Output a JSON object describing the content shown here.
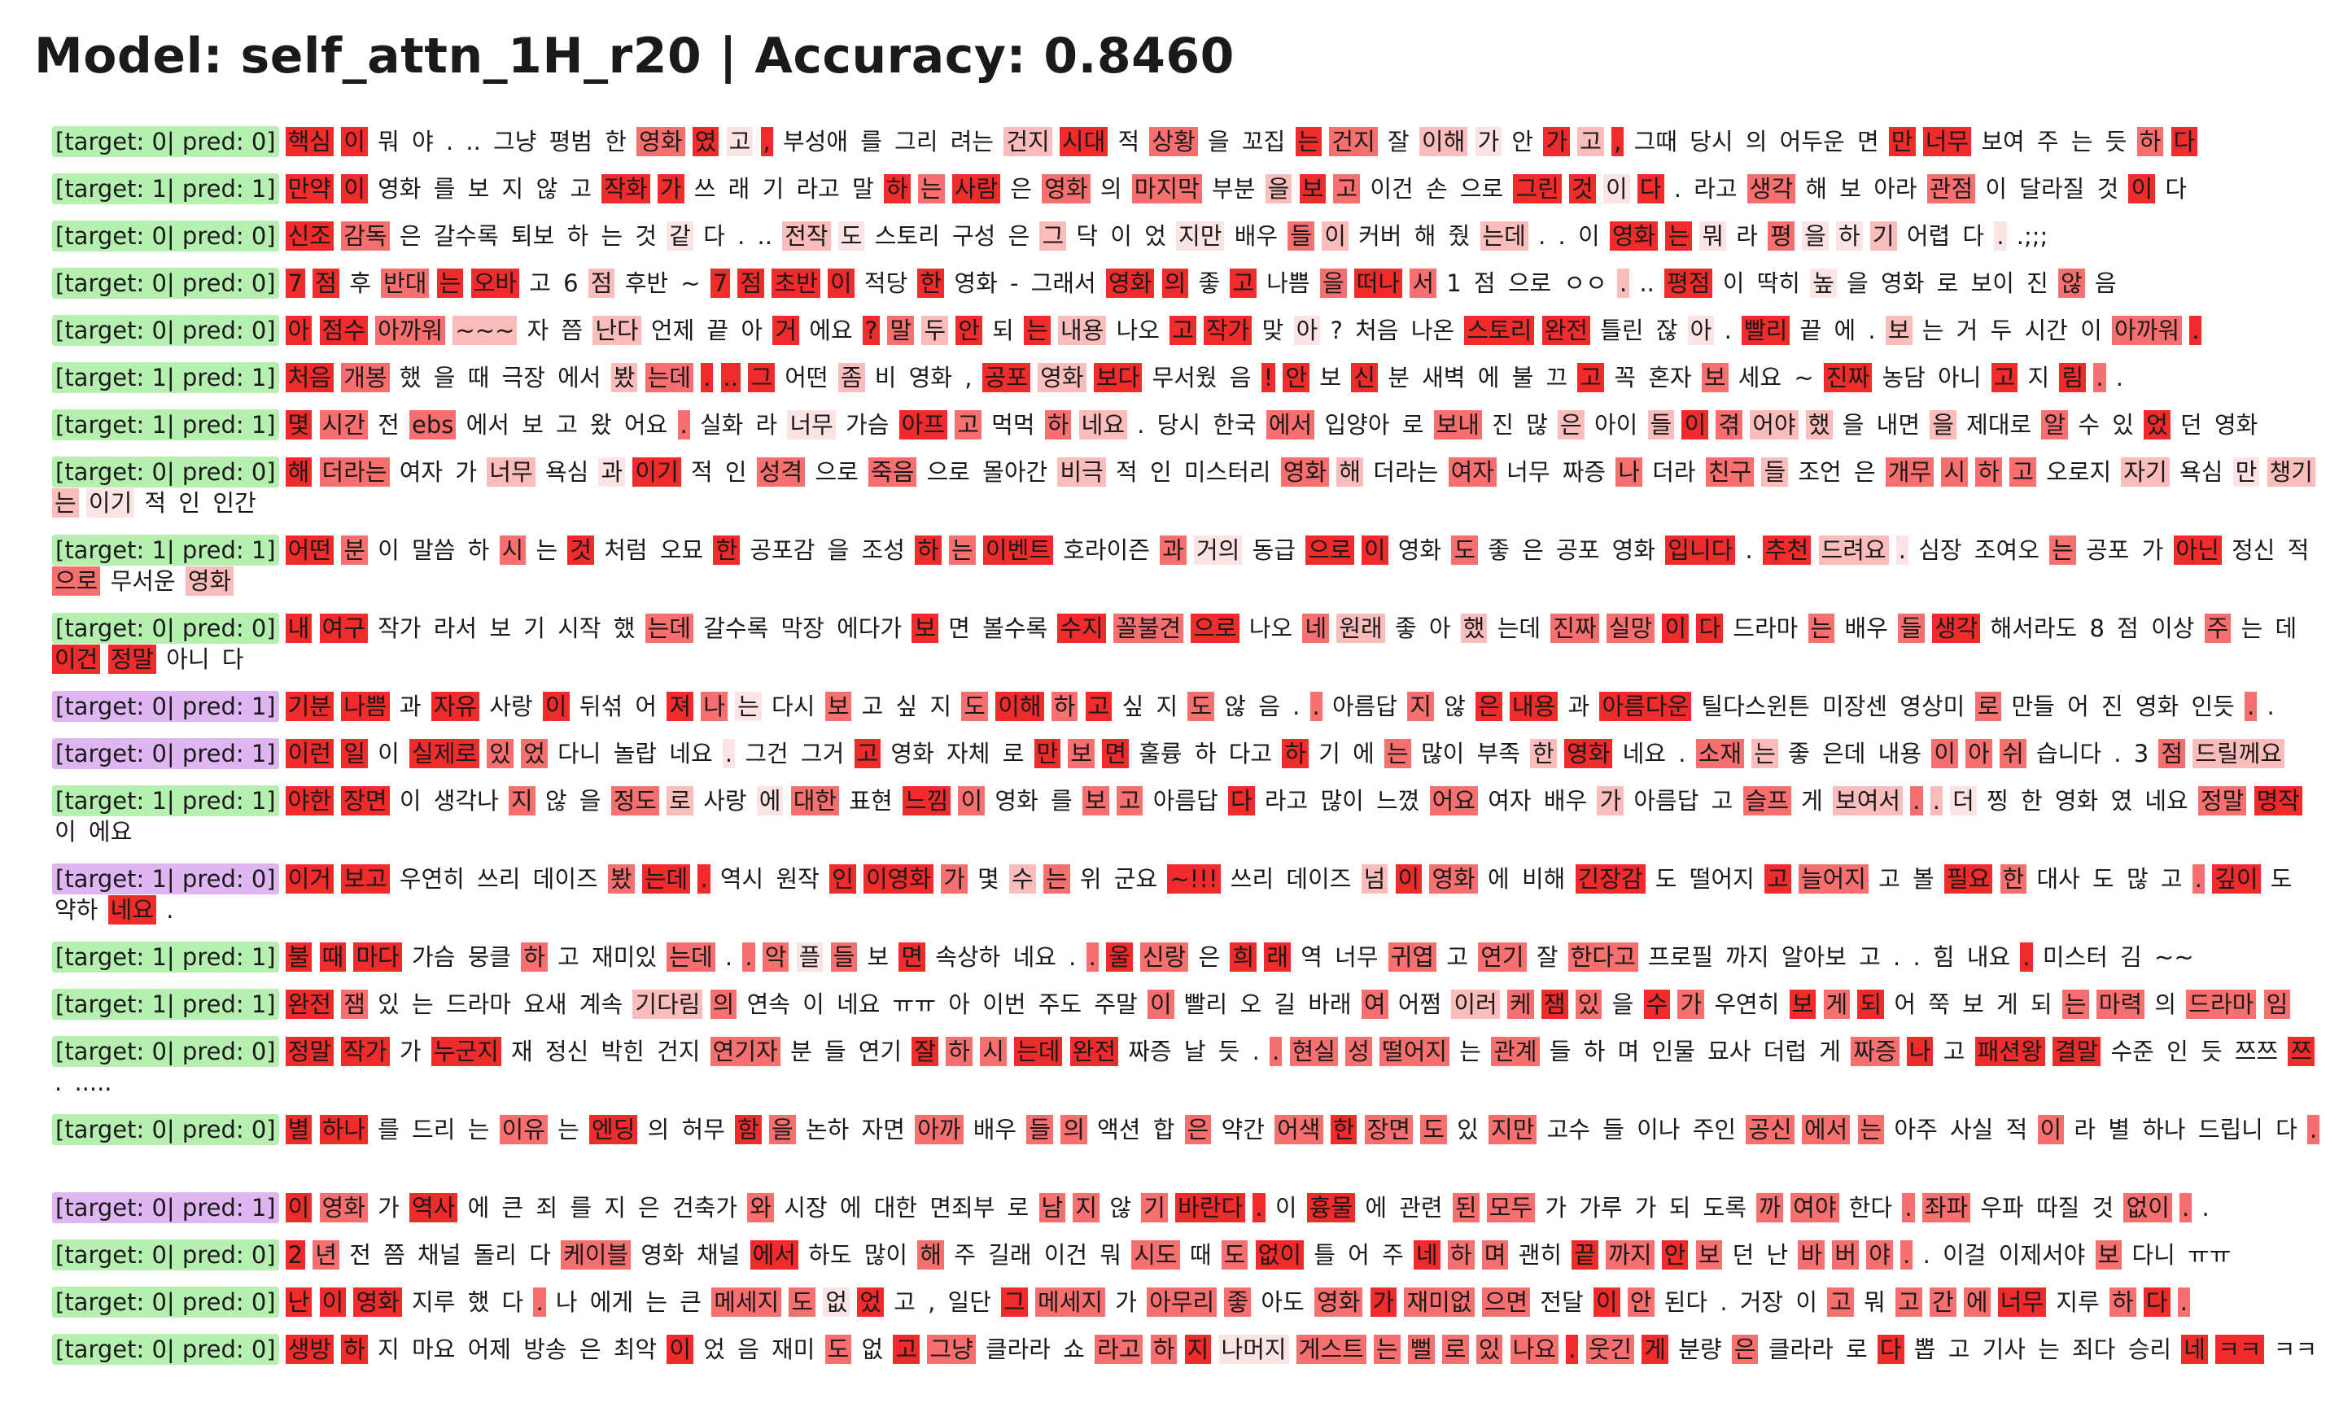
{
  "title": "Model: self_attn_1H_r20 | Accuracy: 0.8460",
  "colors": {
    "correct_label": "#b6f0b0",
    "wrong_label": "#dfb6f2",
    "attention_max": "#ef2b2b",
    "attention_high": "#f76f6f",
    "attention_mid": "#fbbcbc",
    "attention_low": "#fde4e4"
  },
  "rows": [
    {
      "label": "[target: 0| pred: 0]",
      "correct": true,
      "text": "핵심 이 뭐 야 . .. 그냥 평범 한 영화 였 고 , 부성애 를 그리 려는 건지 시대 적 상황 을 꼬집 는 건지 잘 이해 가 안 가 고 , 그때 당시 의 어두운 면 만 너무 보여 주 는 듯 하 다",
      "w": [
        4,
        4,
        0,
        0,
        0,
        0,
        0,
        0,
        0,
        3,
        4,
        1,
        4,
        0,
        0,
        0,
        0,
        2,
        4,
        0,
        3,
        0,
        0,
        4,
        3,
        0,
        2,
        1,
        0,
        4,
        2,
        4,
        0,
        0,
        0,
        0,
        0,
        4,
        4,
        0,
        0,
        0,
        0,
        3,
        4,
        4
      ]
    },
    {
      "label": "[target: 1| pred: 1]",
      "correct": true,
      "text": "만약 이 영화 를 보 지 않 고 작화 가 쓰 래 기 라고 말 하 는 사람 은 영화 의 마지막 부분 을 보 고 이건 손 으로 그린 것 이 다 . 라고 생각 해 보 아라 관점 이 달라질 것 이 다",
      "w": [
        4,
        4,
        0,
        0,
        0,
        0,
        0,
        0,
        4,
        4,
        0,
        0,
        0,
        0,
        0,
        4,
        3,
        4,
        0,
        3,
        0,
        3,
        0,
        2,
        4,
        3,
        0,
        0,
        0,
        4,
        4,
        1,
        4,
        0,
        0,
        3,
        0,
        0,
        0,
        3,
        0,
        0,
        0,
        4,
        0
      ]
    },
    {
      "label": "[target: 0| pred: 0]",
      "correct": true,
      "text": "신조 감독 은 갈수록 퇴보 하 는 것 같 다 . .. 전작 도 스토리 구성 은 그 닥 이 었 지만 배우 들 이 커버 해 줬 는데 . . 이 영화 는 뭐 라 평 을 하 기 어렵 다 . .;;;",
      "w": [
        4,
        3,
        0,
        0,
        0,
        0,
        0,
        0,
        1,
        0,
        0,
        0,
        2,
        1,
        0,
        0,
        0,
        2,
        0,
        0,
        0,
        1,
        0,
        3,
        2,
        0,
        0,
        0,
        2,
        0,
        0,
        0,
        4,
        4,
        1,
        0,
        3,
        1,
        1,
        2,
        0,
        0,
        1,
        0
      ]
    },
    {
      "label": "[target: 0| pred: 0]",
      "correct": true,
      "text": "7 점 후 반대 는 오바 고 6 점 후반 ~ 7 점 초반 이 적당 한 영화 - 그래서 영화 의 좋 고 나쁨 을 떠나 서 1 점 으로 ㅇㅇ . .. 평점 이 딱히 높 을 영화 로 보이 진 않 음",
      "w": [
        4,
        4,
        0,
        3,
        4,
        4,
        0,
        0,
        2,
        0,
        0,
        4,
        4,
        4,
        4,
        0,
        4,
        0,
        0,
        0,
        4,
        4,
        0,
        4,
        0,
        3,
        4,
        3,
        0,
        0,
        0,
        0,
        2,
        0,
        4,
        0,
        0,
        1,
        0,
        0,
        0,
        0,
        0,
        3,
        0
      ]
    },
    {
      "label": "[target: 0| pred: 0]",
      "correct": true,
      "text": "아 점수 아까워 ~~~ 자 쯤 난다 언제 끝 아 거 에요 ? 말 두 안 되 는 내용 나오 고 작가 맞 아 ? 처음 나온 스토리 완전 틀린 잖 아 . 빨리 끝 에 . 보 는 거 두 시간 이 아까워 .",
      "w": [
        4,
        4,
        3,
        2,
        0,
        0,
        2,
        0,
        0,
        0,
        4,
        0,
        4,
        3,
        2,
        4,
        0,
        4,
        2,
        0,
        4,
        4,
        0,
        1,
        0,
        0,
        0,
        4,
        4,
        0,
        0,
        1,
        0,
        4,
        0,
        0,
        0,
        2,
        0,
        0,
        0,
        0,
        0,
        3,
        4
      ]
    },
    {
      "label": "[target: 1| pred: 1]",
      "correct": true,
      "text": "처음 개봉 했 을 때 극장 에서 봤 는데 . .. 그 어떤 좀 비 영화 , 공포 영화 보다 무서웠 음 ! 안 보 신 분 새벽 에 불 끄 고 꼭 혼자 보 세요 ~ 진짜 농담 아니 고 지 림 . .",
      "w": [
        4,
        3,
        0,
        0,
        0,
        0,
        0,
        2,
        3,
        4,
        4,
        4,
        0,
        2,
        0,
        0,
        0,
        4,
        2,
        4,
        0,
        0,
        4,
        4,
        0,
        4,
        0,
        0,
        0,
        0,
        0,
        4,
        0,
        0,
        3,
        0,
        0,
        4,
        0,
        0,
        4,
        0,
        4,
        3
      ]
    },
    {
      "label": "[target: 1| pred: 1]",
      "correct": true,
      "text": "몇 시간 전 ebs 에서 보 고 왔 어요 . 실화 라 너무 가슴 아프 고 먹먹 하 네요 . 당시 한국 에서 입양아 로 보내 진 많 은 아이 들 이 겪 어야 했 을 내면 을 제대로 알 수 있 었 던 영화",
      "w": [
        4,
        3,
        0,
        3,
        0,
        0,
        0,
        0,
        0,
        3,
        0,
        0,
        1,
        0,
        4,
        3,
        0,
        3,
        2,
        0,
        0,
        0,
        3,
        0,
        0,
        3,
        0,
        0,
        2,
        0,
        2,
        4,
        3,
        2,
        2,
        0,
        0,
        2,
        0,
        3,
        0,
        0,
        4,
        0,
        0
      ]
    },
    {
      "label": "[target: 0| pred: 0]",
      "correct": true,
      "text": "해 더라는 여자 가 너무 욕심 과 이기 적 인 성격 으로 죽음 으로 몰아간 비극 적 인 미스터리 영화 해 더라는 여자 너무 짜증 나 더라 친구 들 조언 은 개무 시 하 고 오로지 자기 욕심 만 챙기 는 이기 적 인 인간",
      "w": [
        4,
        3,
        0,
        0,
        2,
        0,
        1,
        4,
        0,
        0,
        3,
        0,
        3,
        0,
        0,
        2,
        0,
        0,
        0,
        3,
        2,
        0,
        3,
        0,
        0,
        3,
        0,
        3,
        2,
        0,
        0,
        3,
        3,
        3,
        3,
        0,
        2,
        0,
        1,
        2,
        2,
        1,
        0,
        0
      ]
    },
    {
      "label": "[target: 1| pred: 1]",
      "correct": true,
      "text": "어떤 분 이 말씀 하 시 는 것 처럼 오묘 한 공포감 을 조성 하 는 이벤트 호라이즌 과 거의 동급 으로 이 영화 도 좋 은 공포 영화 입니다 . 추천 드려요 . 심장 조여오 는 공포 가 아닌 정신 적 으로 무서운 영화",
      "w": [
        4,
        3,
        0,
        0,
        0,
        3,
        0,
        4,
        0,
        0,
        4,
        0,
        0,
        0,
        4,
        3,
        4,
        0,
        3,
        1,
        0,
        4,
        4,
        0,
        3,
        0,
        0,
        0,
        0,
        4,
        0,
        4,
        2,
        1,
        0,
        0,
        3,
        0,
        0,
        4,
        0,
        0,
        3,
        0,
        2,
        0
      ]
    },
    {
      "label": "[target: 0| pred: 0]",
      "correct": true,
      "text": "내 여구 작가 라서 보 기 시작 했 는데 갈수록 막장 에다가 보 면 볼수록 수지 꼴불견 으로 나오 네 원래 좋 아 했 는데 진짜 실망 이 다 드라마 는 배우 들 생각 해서라도 8 점 이상 주 는 데 이건 정말 아니 다",
      "w": [
        4,
        4,
        0,
        0,
        0,
        0,
        0,
        0,
        3,
        0,
        0,
        0,
        4,
        0,
        0,
        4,
        3,
        4,
        0,
        3,
        2,
        0,
        0,
        2,
        0,
        3,
        3,
        4,
        4,
        0,
        3,
        0,
        3,
        4,
        0,
        0,
        0,
        0,
        3,
        0,
        0,
        4,
        4,
        0
      ]
    },
    {
      "label": "[target: 0| pred: 1]",
      "correct": false,
      "text": "기분 나쁨 과 자유 사랑 이 뒤섞 어 져 나 는 다시 보 고 싶 지 도 이해 하 고 싶 지 도 않 음 . . 아름답 지 않 은 내용 과 아름다운 틸다스윈튼 미장센 영상미 로 만들 어 진 영화 인듯 . .",
      "w": [
        4,
        4,
        0,
        4,
        0,
        4,
        0,
        0,
        4,
        3,
        1,
        0,
        3,
        0,
        0,
        0,
        3,
        4,
        3,
        4,
        0,
        0,
        3,
        0,
        0,
        0,
        3,
        0,
        3,
        0,
        4,
        4,
        0,
        4,
        0,
        0,
        0,
        3,
        0,
        0,
        0,
        0,
        0,
        3
      ]
    },
    {
      "label": "[target: 0| pred: 1]",
      "correct": false,
      "text": "이런 일 이 실제로 있 었 다니 놀랍 네요 . 그건 그거 고 영화 자체 로 만 보 면 훌륭 하 다고 하 기 에 는 많이 부족 한 영화 네요 . 소재 는 좋 은데 내용 이 아 쉬 습니다 . 3 점 드릴께요",
      "w": [
        4,
        4,
        0,
        4,
        3,
        3,
        0,
        0,
        0,
        1,
        0,
        0,
        4,
        0,
        0,
        0,
        4,
        3,
        4,
        0,
        0,
        0,
        4,
        0,
        0,
        3,
        0,
        0,
        2,
        4,
        0,
        0,
        3,
        2,
        0,
        0,
        0,
        3,
        3,
        3,
        0,
        0,
        0,
        3,
        2,
        4
      ]
    },
    {
      "label": "[target: 1| pred: 1]",
      "correct": true,
      "text": "야한 장면 이 생각나 지 않 을 정도 로 사랑 에 대한 표현 느낌 이 영화 를 보 고 아름답 다 라고 많이 느꼈 어요 여자 배우 가 아름답 고 슬프 게 보여서 . . 더 찡 한 영화 였 네요 정말 명작 이 에요",
      "w": [
        4,
        4,
        0,
        0,
        3,
        0,
        0,
        3,
        2,
        0,
        1,
        3,
        0,
        4,
        3,
        0,
        0,
        3,
        3,
        0,
        4,
        0,
        0,
        0,
        3,
        0,
        0,
        2,
        0,
        0,
        3,
        0,
        2,
        3,
        2,
        1,
        0,
        0,
        0,
        0,
        0,
        3,
        4,
        0
      ]
    },
    {
      "label": "[target: 1| pred: 0]",
      "correct": false,
      "text": "이거 보고 우연히 쓰리 데이즈 봤 는데 . 역시 원작 인 이영화 가 몇 수 는 위 군요 ~!!! 쓰리 데이즈 넘 이 영화 에 비해 긴장감 도 떨어지 고 늘어지 고 볼 필요 한 대사 도 많 고 . 깊이 도 약하 네요 .",
      "w": [
        4,
        4,
        0,
        0,
        0,
        3,
        4,
        4,
        0,
        0,
        4,
        4,
        3,
        0,
        2,
        3,
        0,
        0,
        4,
        0,
        0,
        2,
        4,
        3,
        0,
        0,
        4,
        0,
        0,
        4,
        3,
        0,
        0,
        4,
        3,
        0,
        0,
        0,
        0,
        3,
        4,
        0,
        0,
        4
      ]
    },
    {
      "label": "[target: 1| pred: 1]",
      "correct": true,
      "text": "불 때 마다 가슴 뭉클 하 고 재미있 는데 . . 악 플 들 보 면 속상하 네요 . . 울 신랑 은 희 래 역 너무 귀엽 고 연기 잘 한다고 프로필 까지 알아보 고 . . 힘 내요 . 미스터 김 ~~",
      "w": [
        4,
        4,
        4,
        0,
        0,
        3,
        0,
        0,
        3,
        0,
        3,
        3,
        1,
        3,
        0,
        4,
        0,
        0,
        0,
        3,
        4,
        3,
        0,
        4,
        4,
        0,
        0,
        3,
        0,
        3,
        0,
        3,
        0,
        0,
        0,
        0,
        0,
        0,
        0,
        0,
        4,
        0
      ]
    },
    {
      "label": "[target: 1| pred: 1]",
      "correct": true,
      "text": "완전 잼 있 는 드라마 요새 계속 기다림 의 연속 이 네요 ㅠㅠ 아 이번 주도 주말 이 빨리 오 길 바래 여 어쩜 이러 케 잼 있 을 수 가 우연히 보 게 되 어 쭉 보 게 되 는 마력 의 드라마 임",
      "w": [
        4,
        3,
        0,
        0,
        0,
        0,
        0,
        2,
        3,
        0,
        0,
        0,
        0,
        0,
        0,
        0,
        0,
        3,
        0,
        0,
        0,
        0,
        3,
        0,
        2,
        3,
        4,
        3,
        0,
        4,
        3,
        0,
        4,
        3,
        4,
        0,
        0,
        0,
        0,
        0,
        3,
        3,
        0,
        3,
        3
      ]
    },
    {
      "label": "[target: 0| pred: 0]",
      "correct": true,
      "text": "정말 작가 가 누군지 재 정신 박힌 건지 연기자 분 들 연기 잘 하 시 는데 완전 짜증 날 듯 . . 현실 성 떨어지 는 관계 들 하 며 인물 묘사 더럽 게 짜증 나 고 패션왕 결말 수준 인 듯 쯔쯔 쯔 . .....",
      "w": [
        4,
        4,
        0,
        4,
        0,
        0,
        0,
        0,
        3,
        0,
        0,
        0,
        4,
        3,
        3,
        4,
        4,
        0,
        0,
        0,
        0,
        3,
        3,
        3,
        3,
        0,
        3,
        0,
        0,
        0,
        0,
        0,
        0,
        0,
        3,
        4,
        0,
        4,
        4,
        0,
        0,
        0,
        0,
        4,
        0
      ]
    },
    {
      "label": "[target: 0| pred: 0]",
      "correct": true,
      "text": "별 하나 를 드리 는 이유 는 엔딩 의 허무 함 을 논하 자면 아까 배우 들 의 액션 합 은 약간 어색 한 장면 도 있 지만 고수 들 이나 주인 공신 에서 는 아주 사실 적 이 라 별 하나 드립니 다 .",
      "w": [
        4,
        4,
        0,
        0,
        0,
        3,
        0,
        4,
        0,
        0,
        4,
        3,
        0,
        0,
        3,
        0,
        3,
        3,
        0,
        0,
        3,
        0,
        3,
        4,
        3,
        3,
        0,
        3,
        0,
        0,
        0,
        0,
        3,
        3,
        3,
        0,
        0,
        0,
        3,
        0,
        0,
        0,
        0,
        0,
        3
      ]
    },
    {
      "label": "[target: 0| pred: 1]",
      "correct": false,
      "text": "이 영화 가 역사 에 큰 죄 를 지 은 건축가 와 시장 에 대한 면죄부 로 남 지 않 기 바란다 . 이 흉물 에 관련 된 모두 가 가루 가 되 도록 까 여야 한다 . 좌파 우파 따질 것 없이 . .",
      "w": [
        4,
        3,
        0,
        4,
        0,
        0,
        0,
        0,
        0,
        0,
        0,
        3,
        0,
        0,
        0,
        0,
        0,
        3,
        3,
        0,
        3,
        4,
        4,
        0,
        4,
        0,
        0,
        3,
        3,
        0,
        0,
        0,
        0,
        0,
        3,
        3,
        0,
        3,
        3,
        0,
        0,
        0,
        3,
        3
      ]
    },
    {
      "label": "[target: 0| pred: 0]",
      "correct": true,
      "text": "2 년 전 쯤 채널 돌리 다 케이블 영화 채널 에서 하도 많이 해 주 길래 이건 뭐 시도 때 도 없이 틀 어 주 네 하 며 괜히 끝 까지 안 보 던 난 바 버 야 . . 이걸 이제서야 보 다니 ㅠㅠ",
      "w": [
        4,
        3,
        0,
        0,
        0,
        0,
        0,
        3,
        0,
        0,
        4,
        0,
        0,
        3,
        0,
        0,
        0,
        0,
        3,
        0,
        3,
        4,
        0,
        0,
        0,
        4,
        3,
        3,
        0,
        4,
        3,
        4,
        3,
        0,
        0,
        3,
        3,
        3,
        3,
        0,
        0,
        0,
        3,
        0
      ]
    },
    {
      "label": "[target: 0| pred: 0]",
      "correct": true,
      "text": "난 이 영화 지루 했 다 . 나 에게 는 큰 메세지 도 없 었 고 , 일단 그 메세지 가 아무리 좋 아도 영화 가 재미없 으면 전달 이 안 된다 . 거장 이 고 뭐 고 간 에 너무 지루 하 다 .",
      "w": [
        4,
        4,
        4,
        0,
        0,
        0,
        3,
        0,
        0,
        0,
        0,
        3,
        3,
        1,
        4,
        0,
        0,
        0,
        4,
        3,
        0,
        3,
        3,
        0,
        3,
        4,
        3,
        3,
        0,
        4,
        3,
        0,
        0,
        0,
        0,
        3,
        0,
        3,
        3,
        3,
        4,
        0,
        3,
        4,
        3
      ]
    },
    {
      "label": "[target: 0| pred: 0]",
      "correct": true,
      "text": "생방 하 지 마요 어제 방송 은 최악 이 었 음 재미 도 없 고 그냥 클라라 쇼 라고 하 지 나머지 게스트 는 뻘 로 있 나요 . 웃긴 게 분량 은 클라라 로 다 뽑 고 기사 는 죄다 승리 네 ㅋㅋ ㅋㅋ",
      "w": [
        4,
        4,
        0,
        0,
        0,
        0,
        0,
        0,
        4,
        0,
        0,
        0,
        3,
        0,
        4,
        3,
        0,
        0,
        3,
        3,
        4,
        1,
        3,
        3,
        3,
        3,
        3,
        3,
        4,
        3,
        4,
        0,
        3,
        0,
        0,
        4,
        0,
        0,
        0,
        0,
        0,
        0,
        4,
        4
      ]
    }
  ]
}
